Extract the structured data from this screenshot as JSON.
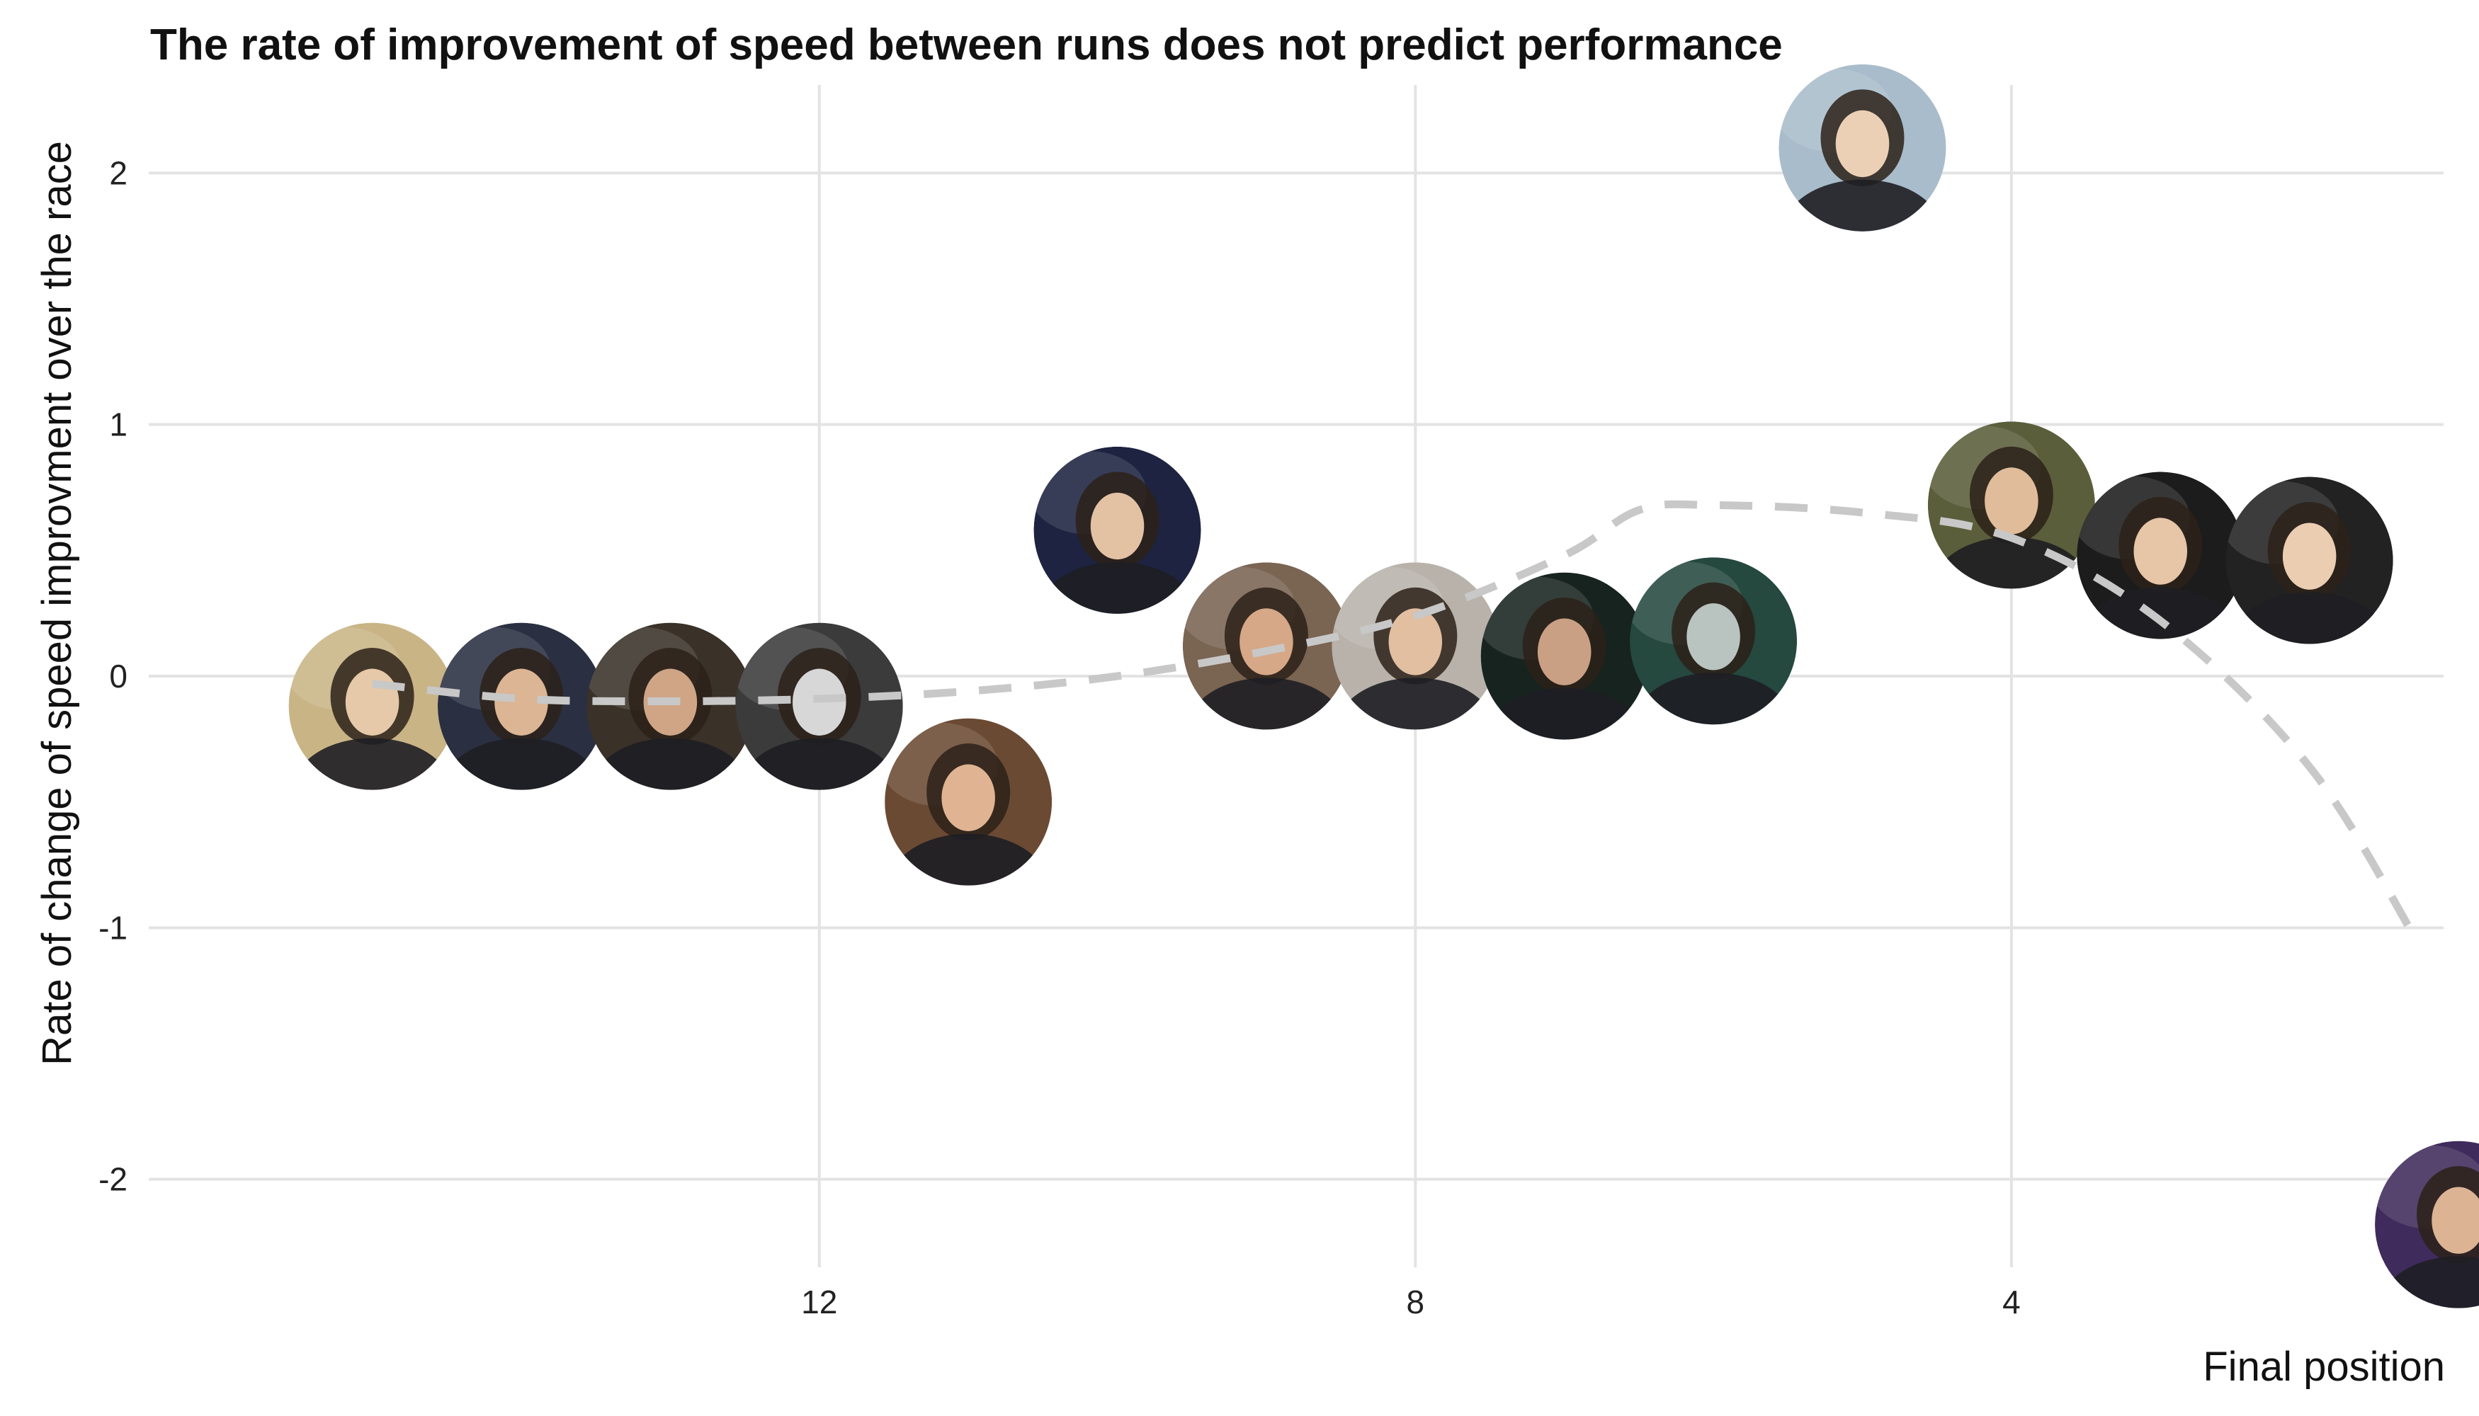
{
  "chart_data": {
    "type": "scatter",
    "title": "The rate of improvement of speed between runs does not predict performance",
    "xlabel": "Final position",
    "ylabel": "Rate of change of speed improvment over the race",
    "x_reversed": true,
    "xlim": [
      16.5,
      1.1
    ],
    "ylim": [
      -2.35,
      2.35
    ],
    "x_ticks": [
      12,
      8,
      4
    ],
    "y_ticks": [
      2,
      1,
      0,
      -1,
      -2
    ],
    "grid": true,
    "legend": "none",
    "point_marker": "circular rider photo",
    "series": [
      {
        "values": [
          {
            "x": 15,
            "y": -0.12
          },
          {
            "x": 14,
            "y": -0.12
          },
          {
            "x": 13,
            "y": -0.12
          },
          {
            "x": 12,
            "y": -0.12
          },
          {
            "x": 11,
            "y": -0.5
          },
          {
            "x": 10,
            "y": 0.58
          },
          {
            "x": 9,
            "y": 0.12
          },
          {
            "x": 8,
            "y": 0.12
          },
          {
            "x": 7,
            "y": 0.08
          },
          {
            "x": 6,
            "y": 0.14
          },
          {
            "x": 5,
            "y": 2.1
          },
          {
            "x": 4,
            "y": 0.68
          },
          {
            "x": 3,
            "y": 0.48
          },
          {
            "x": 2,
            "y": 0.46
          },
          {
            "x": 1,
            "y": -2.18
          }
        ]
      }
    ],
    "trend": {
      "style": "dashed",
      "x": [
        15,
        14,
        13,
        12,
        11,
        10,
        9,
        8,
        7,
        6.5,
        6,
        5,
        4,
        3,
        2,
        1.3
      ],
      "y": [
        -0.03,
        -0.09,
        -0.1,
        -0.09,
        -0.06,
        0.0,
        0.1,
        0.24,
        0.48,
        0.66,
        0.68,
        0.65,
        0.55,
        0.22,
        -0.36,
        -1.03
      ]
    },
    "colors": {
      "grid": "#e3e3e3",
      "trend": "#c8c8c8",
      "photo_backgrounds": [
        "#c9b486",
        "#2a2f42",
        "#3a3128",
        "#3b3b3b",
        "#6b4a33",
        "#1d2340",
        "#7a6452",
        "#b8b2aa",
        "#17231f",
        "#25483f",
        "#a9bccb",
        "#5a5e3a",
        "#1c1c1c",
        "#222222",
        "#3f2b5c"
      ],
      "photo_faces": [
        "#e6c9a8",
        "#dcb595",
        "#cfa586",
        "#d7d7d7",
        "#e0b492",
        "#e3c2a4",
        "#d6a887",
        "#e2bfa1",
        "#caa084",
        "#b9c4c0",
        "#ecd0b6",
        "#e1bc9b",
        "#e6c6a7",
        "#ebcdb2",
        "#dcb494"
      ]
    }
  }
}
